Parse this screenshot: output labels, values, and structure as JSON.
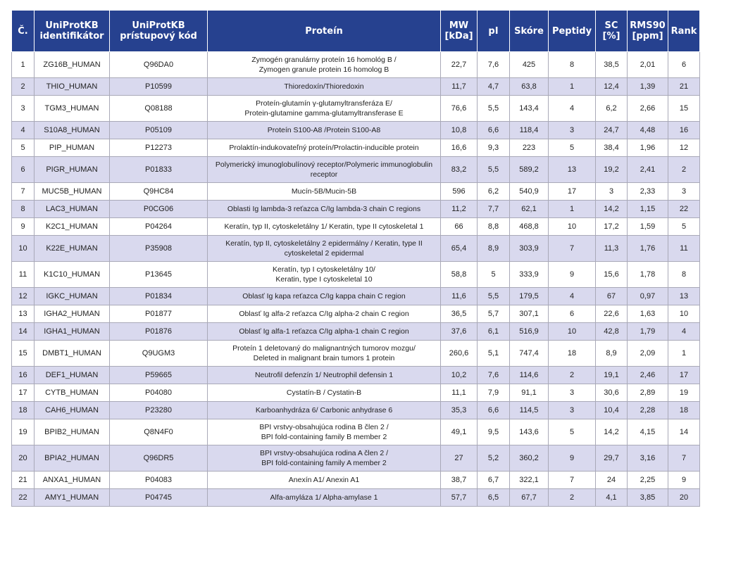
{
  "headers": [
    "Č.",
    "UniProtKB identifikátor",
    "UniProtKB prístupový kód",
    "Proteín",
    "MW [kDa]",
    "pI",
    "Skóre",
    "Peptidy",
    "SC [%]",
    "RMS90 [ppm]",
    "Rank"
  ],
  "rows": [
    [
      "1",
      "ZG16B_HUMAN",
      "Q96DA0",
      "Zymogén granulárny proteín 16 homológ B /\nZymogen granule protein 16 homolog B",
      "22,7",
      "7,6",
      "425",
      "8",
      "38,5",
      "2,01",
      "6"
    ],
    [
      "2",
      "THIO_HUMAN",
      "P10599",
      "Thioredoxín/Thioredoxin",
      "11,7",
      "4,7",
      "63,8",
      "1",
      "12,4",
      "1,39",
      "21"
    ],
    [
      "3",
      "TGM3_HUMAN",
      "Q08188",
      "Proteín-glutamín γ-glutamyltransferáza E/\nProtein-glutamine gamma-glutamyltransferase E",
      "76,6",
      "5,5",
      "143,4",
      "4",
      "6,2",
      "2,66",
      "15"
    ],
    [
      "4",
      "S10A8_HUMAN",
      "P05109",
      "Proteín S100-A8 /Protein S100-A8",
      "10,8",
      "6,6",
      "118,4",
      "3",
      "24,7",
      "4,48",
      "16"
    ],
    [
      "5",
      "PIP_HUMAN",
      "P12273",
      "Prolaktín-indukovateľný proteín/Prolactin-inducible protein",
      "16,6",
      "9,3",
      "223",
      "5",
      "38,4",
      "1,96",
      "12"
    ],
    [
      "6",
      "PIGR_HUMAN",
      "P01833",
      "Polymerický imunoglobulínový receptor/Polymeric immunoglobulin\nreceptor",
      "83,2",
      "5,5",
      "589,2",
      "13",
      "19,2",
      "2,41",
      "2"
    ],
    [
      "7",
      "MUC5B_HUMAN",
      "Q9HC84",
      "Mucín-5B/Mucin-5B",
      "596",
      "6,2",
      "540,9",
      "17",
      "3",
      "2,33",
      "3"
    ],
    [
      "8",
      "LAC3_HUMAN",
      "P0CG06",
      "Oblasti Ig lambda-3 reťazca C/Ig lambda-3 chain C regions",
      "11,2",
      "7,7",
      "62,1",
      "1",
      "14,2",
      "1,15",
      "22"
    ],
    [
      "9",
      "K2C1_HUMAN",
      "P04264",
      "Keratín, typ II, cytoskeletálny 1/ Keratin, type II cytoskeletal 1",
      "66",
      "8,8",
      "468,8",
      "10",
      "17,2",
      "1,59",
      "5"
    ],
    [
      "10",
      "K22E_HUMAN",
      "P35908",
      "Keratín, typ II, cytoskeletálny 2 epidermálny / Keratin, type II\ncytoskeletal 2 epidermal",
      "65,4",
      "8,9",
      "303,9",
      "7",
      "11,3",
      "1,76",
      "11"
    ],
    [
      "11",
      "K1C10_HUMAN",
      "P13645",
      "Keratín, typ I cytoskeletálny 10/\nKeratin, type I cytoskeletal 10",
      "58,8",
      "5",
      "333,9",
      "9",
      "15,6",
      "1,78",
      "8"
    ],
    [
      "12",
      "IGKC_HUMAN",
      "P01834",
      "Oblasť Ig kapa reťazca C/Ig kappa chain C region",
      "11,6",
      "5,5",
      "179,5",
      "4",
      "67",
      "0,97",
      "13"
    ],
    [
      "13",
      "IGHA2_HUMAN",
      "P01877",
      "Oblasť Ig alfa-2 reťazca C/Ig alpha-2 chain C region",
      "36,5",
      "5,7",
      "307,1",
      "6",
      "22,6",
      "1,63",
      "10"
    ],
    [
      "14",
      "IGHA1_HUMAN",
      "P01876",
      "Oblasť Ig alfa-1 reťazca C/Ig alpha-1 chain C region",
      "37,6",
      "6,1",
      "516,9",
      "10",
      "42,8",
      "1,79",
      "4"
    ],
    [
      "15",
      "DMBT1_HUMAN",
      "Q9UGM3",
      "Proteín 1 deletovaný do malignantných tumorov mozgu/\nDeleted in malignant brain tumors 1 protein",
      "260,6",
      "5,1",
      "747,4",
      "18",
      "8,9",
      "2,09",
      "1"
    ],
    [
      "16",
      "DEF1_HUMAN",
      "P59665",
      "Neutrofil defenzín 1/ Neutrophil defensin 1",
      "10,2",
      "7,6",
      "114,6",
      "2",
      "19,1",
      "2,46",
      "17"
    ],
    [
      "17",
      "CYTB_HUMAN",
      "P04080",
      "Cystatín-B / Cystatin-B",
      "11,1",
      "7,9",
      "91,1",
      "3",
      "30,6",
      "2,89",
      "19"
    ],
    [
      "18",
      "CAH6_HUMAN",
      "P23280",
      "Karboanhydráza 6/ Carbonic anhydrase 6",
      "35,3",
      "6,6",
      "114,5",
      "3",
      "10,4",
      "2,28",
      "18"
    ],
    [
      "19",
      "BPIB2_HUMAN",
      "Q8N4F0",
      "BPI vrstvy-obsahujúca rodina B člen 2 /\nBPI fold-containing family B member 2",
      "49,1",
      "9,5",
      "143,6",
      "5",
      "14,2",
      "4,15",
      "14"
    ],
    [
      "20",
      "BPIA2_HUMAN",
      "Q96DR5",
      "BPI vrstvy-obsahujúca rodina A člen 2 /\nBPI fold-containing family A member 2",
      "27",
      "5,2",
      "360,2",
      "9",
      "29,7",
      "3,16",
      "7"
    ],
    [
      "21",
      "ANXA1_HUMAN",
      "P04083",
      "Anexín A1/ Anexin A1",
      "38,7",
      "6,7",
      "322,1",
      "7",
      "24",
      "2,25",
      "9"
    ],
    [
      "22",
      "AMY1_HUMAN",
      "P04745",
      "Alfa-amyláza 1/ Alpha-amylase 1",
      "57,7",
      "6,5",
      "67,7",
      "2",
      "4,1",
      "3,85",
      "20"
    ]
  ],
  "colors": {
    "header_bg": "#26418f",
    "header_text": "#ffffff",
    "stripe": "#d9d9ee",
    "row": "#ffffff",
    "border": "#a9a9b8"
  }
}
